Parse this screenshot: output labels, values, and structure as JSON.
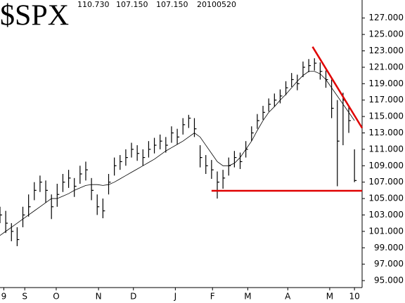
{
  "chart_data": {
    "type": "ohlc",
    "title": "$SPX",
    "header": [
      "110.730",
      "107.150",
      "107.150",
      "20100520"
    ],
    "x": [
      0,
      3,
      6,
      9,
      12,
      15,
      18,
      21,
      24,
      27,
      30,
      33,
      36,
      39,
      42,
      45,
      48,
      51,
      54,
      57,
      60,
      63,
      66,
      69,
      72,
      75,
      78,
      81,
      84,
      87,
      90,
      93,
      96,
      99,
      102,
      105,
      108,
      111,
      114,
      117,
      120,
      123,
      126,
      129,
      132,
      135,
      138,
      141,
      144,
      147,
      150,
      153,
      156,
      159,
      162,
      165,
      168,
      171,
      174,
      177,
      180,
      183,
      186
    ],
    "high": [
      104,
      103.5,
      102,
      101.5,
      104,
      105.5,
      107,
      107.8,
      107.2,
      105.5,
      106.8,
      108,
      108.5,
      107.5,
      109,
      109.5,
      107.5,
      105.5,
      105,
      108,
      110,
      110.3,
      111,
      111.8,
      111.5,
      111,
      112,
      112.4,
      112.8,
      112.5,
      113.8,
      113.5,
      114.8,
      115.2,
      114.8,
      111.5,
      110.3,
      109.7,
      108.3,
      108.5,
      110,
      110.8,
      110.6,
      112,
      113.8,
      115.3,
      116.3,
      117.2,
      117.8,
      118.3,
      119.3,
      120.3,
      120.1,
      121.7,
      122,
      122.1,
      121.6,
      120.6,
      119.5,
      117,
      117.9,
      116.2,
      111
    ],
    "low": [
      102,
      100.8,
      99.8,
      99.2,
      101.5,
      102.8,
      104.8,
      105.8,
      104.5,
      102.5,
      104,
      105.8,
      106.3,
      105.2,
      106.8,
      107.2,
      104.8,
      103,
      102.6,
      105.5,
      107.8,
      108.5,
      109,
      110,
      109.6,
      109,
      110,
      110.5,
      111,
      110.6,
      111.8,
      111.6,
      112.8,
      113.6,
      112.5,
      108.8,
      108,
      107.4,
      105,
      106.2,
      107.8,
      108.8,
      108.6,
      110,
      112,
      113.5,
      114.6,
      115.6,
      116.2,
      116.6,
      117.6,
      118.6,
      118.2,
      119.8,
      120.4,
      120.6,
      119.5,
      118.5,
      114.8,
      106.5,
      111.5,
      113,
      107
    ],
    "close": [
      103,
      102,
      101,
      100,
      103,
      104,
      106,
      107,
      106,
      104,
      105.5,
      107,
      107.5,
      106.5,
      108,
      108.5,
      106,
      104,
      103.5,
      107,
      109,
      109.5,
      110,
      111,
      110.5,
      110,
      111,
      111.5,
      112,
      111.5,
      113,
      112.5,
      114,
      114.8,
      113.5,
      110,
      109,
      108.5,
      107,
      107.5,
      109,
      110,
      109.5,
      111,
      113,
      114.5,
      115.5,
      116.5,
      117,
      117.5,
      118.5,
      119.5,
      119,
      121,
      121.2,
      121.5,
      120.5,
      119.5,
      116,
      112,
      117,
      114.5,
      107.2
    ],
    "color": "#000000",
    "moving_average": {
      "values": [
        100.5,
        101,
        101.5,
        102,
        102.5,
        103,
        103.5,
        104,
        104.5,
        105,
        105,
        105.3,
        105.6,
        106,
        106.3,
        106.6,
        106.7,
        106.7,
        106.6,
        106.7,
        107,
        107.4,
        107.8,
        108.2,
        108.6,
        109,
        109.4,
        109.8,
        110.3,
        110.8,
        111.2,
        111.6,
        112,
        112.5,
        113,
        112.5,
        111.5,
        110.5,
        109.5,
        109,
        109,
        109.3,
        110,
        111,
        112,
        113.3,
        114.5,
        115.5,
        116.2,
        117,
        117.7,
        118.5,
        119.3,
        120,
        120.5,
        120.5,
        120.2,
        119.5,
        118.5,
        117.5,
        116.5,
        115.5,
        114.5
      ],
      "color": "#000000"
    },
    "trendlines": [
      {
        "x": [
          164,
          190
        ],
        "y": [
          123.5,
          113.6
        ],
        "color": "#e00000"
      },
      {
        "x": [
          111,
          190
        ],
        "y": [
          105.95,
          105.95
        ],
        "color": "#e00000"
      }
    ],
    "xlim": [
      0,
      190
    ],
    "xticks": [
      {
        "value": 2,
        "label": "9"
      },
      {
        "value": 13,
        "label": "S"
      },
      {
        "value": 29.5,
        "label": "O"
      },
      {
        "value": 51.7,
        "label": "N"
      },
      {
        "value": 70,
        "label": "D"
      },
      {
        "value": 92,
        "label": "J"
      },
      {
        "value": 111.5,
        "label": "F"
      },
      {
        "value": 130,
        "label": "M"
      },
      {
        "value": 151,
        "label": "A"
      },
      {
        "value": 173,
        "label": "M"
      },
      {
        "value": 186,
        "label": "10"
      }
    ],
    "ylim": [
      94.15,
      129.2
    ],
    "yticks": [
      {
        "value": 95,
        "label": "95.000"
      },
      {
        "value": 97,
        "label": "97.000"
      },
      {
        "value": 99,
        "label": "99.000"
      },
      {
        "value": 101,
        "label": "101.000"
      },
      {
        "value": 103,
        "label": "103.000"
      },
      {
        "value": 105,
        "label": "105.000"
      },
      {
        "value": 107,
        "label": "107.000"
      },
      {
        "value": 109,
        "label": "109.000"
      },
      {
        "value": 111,
        "label": "111.000"
      },
      {
        "value": 113,
        "label": "113.000"
      },
      {
        "value": 115,
        "label": "115.000"
      },
      {
        "value": 117,
        "label": "117.000"
      },
      {
        "value": 119,
        "label": "119.000"
      },
      {
        "value": 121,
        "label": "121.000"
      },
      {
        "value": 123,
        "label": "123.000"
      },
      {
        "value": 125,
        "label": "125.000"
      },
      {
        "value": 127,
        "label": "127.000"
      }
    ]
  }
}
